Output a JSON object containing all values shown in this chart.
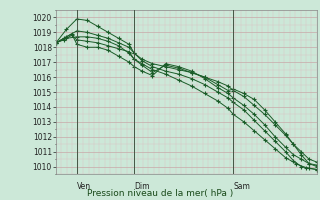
{
  "title": "Pression niveau de la mer( hPa )",
  "bg_color": "#cce8d8",
  "grid_color_major": "#c8a8a8",
  "grid_color_minor": "#ddc0c0",
  "line_color": "#1a5c28",
  "ylim": [
    1009.5,
    1020.5
  ],
  "yticks": [
    1010,
    1011,
    1012,
    1013,
    1014,
    1015,
    1016,
    1017,
    1018,
    1019,
    1020
  ],
  "xtick_labels": [
    "Ven",
    "Dim",
    "Sam"
  ],
  "xtick_positions": [
    0.08,
    0.3,
    0.68
  ],
  "vline_positions": [
    0.08,
    0.3,
    0.68
  ],
  "xlim": [
    0.0,
    1.0
  ],
  "series": [
    [
      [
        0.0,
        1018.3
      ],
      [
        0.03,
        1018.5
      ],
      [
        0.06,
        1018.8
      ],
      [
        0.08,
        1018.5
      ],
      [
        0.12,
        1018.4
      ],
      [
        0.16,
        1018.3
      ],
      [
        0.2,
        1018.1
      ],
      [
        0.24,
        1017.9
      ],
      [
        0.28,
        1017.7
      ],
      [
        0.3,
        1017.2
      ],
      [
        0.33,
        1016.9
      ],
      [
        0.37,
        1016.5
      ],
      [
        0.42,
        1016.2
      ],
      [
        0.47,
        1015.8
      ],
      [
        0.52,
        1015.4
      ],
      [
        0.57,
        1014.9
      ],
      [
        0.62,
        1014.4
      ],
      [
        0.66,
        1013.9
      ],
      [
        0.68,
        1013.5
      ],
      [
        0.72,
        1013.0
      ],
      [
        0.76,
        1012.4
      ],
      [
        0.8,
        1011.8
      ],
      [
        0.84,
        1011.2
      ],
      [
        0.88,
        1010.6
      ],
      [
        0.92,
        1010.2
      ],
      [
        0.96,
        1009.9
      ],
      [
        1.0,
        1009.8
      ]
    ],
    [
      [
        0.0,
        1018.3
      ],
      [
        0.04,
        1018.7
      ],
      [
        0.08,
        1019.1
      ],
      [
        0.12,
        1019.0
      ],
      [
        0.16,
        1018.8
      ],
      [
        0.2,
        1018.6
      ],
      [
        0.24,
        1018.3
      ],
      [
        0.28,
        1018.0
      ],
      [
        0.3,
        1017.6
      ],
      [
        0.33,
        1017.2
      ],
      [
        0.37,
        1016.9
      ],
      [
        0.42,
        1016.7
      ],
      [
        0.47,
        1016.5
      ],
      [
        0.52,
        1016.3
      ],
      [
        0.57,
        1016.0
      ],
      [
        0.62,
        1015.7
      ],
      [
        0.66,
        1015.4
      ],
      [
        0.68,
        1015.1
      ],
      [
        0.72,
        1014.7
      ],
      [
        0.76,
        1014.1
      ],
      [
        0.8,
        1013.5
      ],
      [
        0.84,
        1012.8
      ],
      [
        0.88,
        1012.1
      ],
      [
        0.91,
        1011.5
      ],
      [
        0.94,
        1011.0
      ],
      [
        0.97,
        1010.5
      ],
      [
        1.0,
        1010.3
      ]
    ],
    [
      [
        0.0,
        1018.3
      ],
      [
        0.04,
        1018.6
      ],
      [
        0.08,
        1018.7
      ],
      [
        0.12,
        1018.7
      ],
      [
        0.16,
        1018.6
      ],
      [
        0.2,
        1018.4
      ],
      [
        0.24,
        1018.1
      ],
      [
        0.28,
        1017.6
      ],
      [
        0.3,
        1017.2
      ],
      [
        0.33,
        1016.8
      ],
      [
        0.37,
        1016.3
      ],
      [
        0.42,
        1016.8
      ],
      [
        0.47,
        1016.6
      ],
      [
        0.52,
        1016.3
      ],
      [
        0.57,
        1016.0
      ],
      [
        0.62,
        1015.5
      ],
      [
        0.66,
        1015.1
      ],
      [
        0.68,
        1015.2
      ],
      [
        0.72,
        1014.9
      ],
      [
        0.76,
        1014.5
      ],
      [
        0.8,
        1013.8
      ],
      [
        0.84,
        1013.0
      ],
      [
        0.88,
        1012.2
      ],
      [
        0.91,
        1011.5
      ],
      [
        0.94,
        1010.8
      ],
      [
        0.97,
        1010.2
      ],
      [
        1.0,
        1010.0
      ]
    ],
    [
      [
        0.0,
        1018.3
      ],
      [
        0.03,
        1018.6
      ],
      [
        0.06,
        1018.9
      ],
      [
        0.08,
        1018.2
      ],
      [
        0.12,
        1018.0
      ],
      [
        0.16,
        1018.0
      ],
      [
        0.2,
        1017.8
      ],
      [
        0.24,
        1017.4
      ],
      [
        0.28,
        1017.0
      ],
      [
        0.3,
        1016.7
      ],
      [
        0.33,
        1016.4
      ],
      [
        0.37,
        1016.1
      ],
      [
        0.42,
        1016.9
      ],
      [
        0.47,
        1016.7
      ],
      [
        0.52,
        1016.4
      ],
      [
        0.57,
        1015.9
      ],
      [
        0.62,
        1015.3
      ],
      [
        0.66,
        1014.9
      ],
      [
        0.68,
        1014.6
      ],
      [
        0.72,
        1014.1
      ],
      [
        0.76,
        1013.5
      ],
      [
        0.8,
        1012.8
      ],
      [
        0.84,
        1012.0
      ],
      [
        0.88,
        1011.3
      ],
      [
        0.91,
        1010.8
      ],
      [
        0.94,
        1010.5
      ],
      [
        0.97,
        1010.2
      ],
      [
        1.0,
        1010.1
      ]
    ],
    [
      [
        0.0,
        1018.3
      ],
      [
        0.04,
        1019.2
      ],
      [
        0.08,
        1019.9
      ],
      [
        0.12,
        1019.8
      ],
      [
        0.16,
        1019.4
      ],
      [
        0.2,
        1019.0
      ],
      [
        0.24,
        1018.6
      ],
      [
        0.28,
        1018.2
      ],
      [
        0.3,
        1017.6
      ],
      [
        0.33,
        1017.1
      ],
      [
        0.37,
        1016.7
      ],
      [
        0.42,
        1016.4
      ],
      [
        0.47,
        1016.2
      ],
      [
        0.52,
        1015.9
      ],
      [
        0.57,
        1015.5
      ],
      [
        0.62,
        1015.0
      ],
      [
        0.66,
        1014.6
      ],
      [
        0.68,
        1014.3
      ],
      [
        0.72,
        1013.8
      ],
      [
        0.76,
        1013.1
      ],
      [
        0.8,
        1012.4
      ],
      [
        0.84,
        1011.7
      ],
      [
        0.88,
        1011.0
      ],
      [
        0.91,
        1010.4
      ],
      [
        0.94,
        1010.0
      ],
      [
        0.97,
        1009.9
      ],
      [
        1.0,
        1009.8
      ]
    ]
  ]
}
